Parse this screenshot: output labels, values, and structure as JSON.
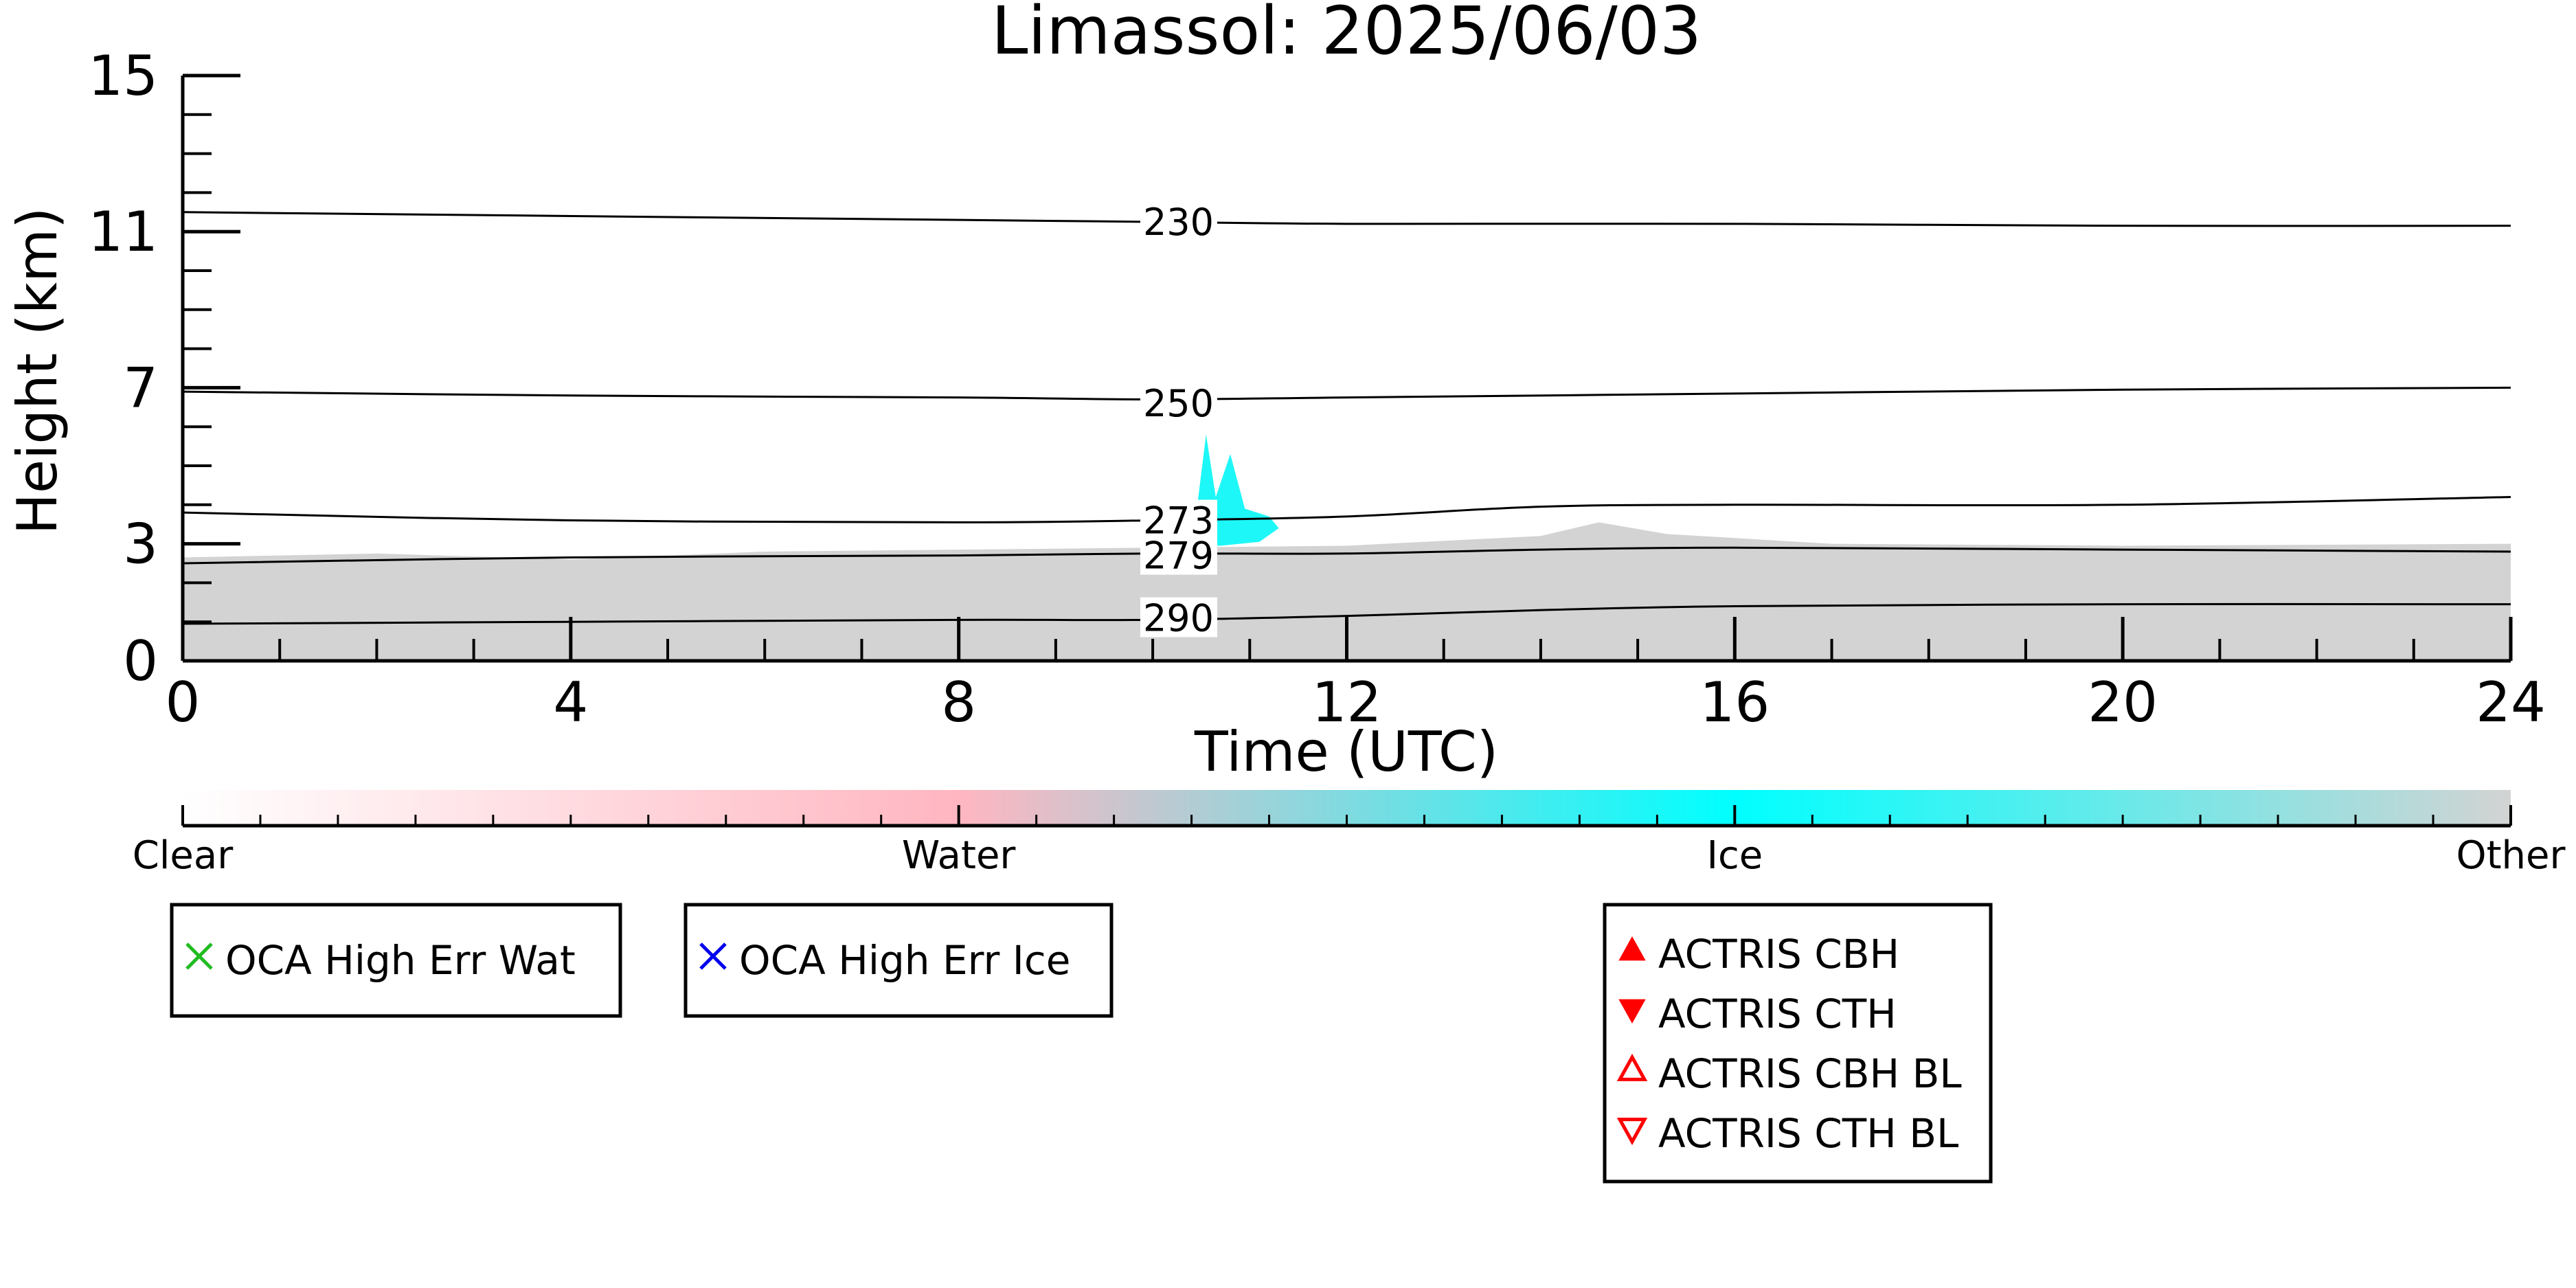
{
  "chart_data": {
    "type": "heatmap",
    "title": "Limassol: 2025/06/03",
    "xlabel": "Time (UTC)",
    "ylabel": "Height (km)",
    "xlim": [
      0,
      24
    ],
    "ylim": [
      0,
      15
    ],
    "x_ticks": [
      {
        "value": 0,
        "label": "0"
      },
      {
        "value": 4,
        "label": "4"
      },
      {
        "value": 8,
        "label": "8"
      },
      {
        "value": 12,
        "label": "12"
      },
      {
        "value": 16,
        "label": "16"
      },
      {
        "value": 20,
        "label": "20"
      },
      {
        "value": 24,
        "label": "24"
      }
    ],
    "x_minor_step": 1,
    "y_ticks": [
      {
        "value": 0,
        "label": "0"
      },
      {
        "value": 3,
        "label": "3"
      },
      {
        "value": 7,
        "label": "7"
      },
      {
        "value": 11,
        "label": "11"
      },
      {
        "value": 15,
        "label": "15"
      }
    ],
    "y_minor_step": 1,
    "temperature_contours": [
      {
        "label": "230",
        "label_at": [
          9.9,
          11.25
        ],
        "points": [
          [
            0,
            11.5
          ],
          [
            4,
            11.4
          ],
          [
            8,
            11.3
          ],
          [
            10,
            11.25
          ],
          [
            12,
            11.2
          ],
          [
            16,
            11.2
          ],
          [
            20,
            11.15
          ],
          [
            24,
            11.15
          ]
        ]
      },
      {
        "label": "250",
        "label_at": [
          9.9,
          6.6
        ],
        "points": [
          [
            0,
            6.9
          ],
          [
            4,
            6.8
          ],
          [
            8,
            6.75
          ],
          [
            10,
            6.7
          ],
          [
            12,
            6.75
          ],
          [
            16,
            6.85
          ],
          [
            20,
            6.95
          ],
          [
            24,
            7.0
          ]
        ]
      },
      {
        "label": "273",
        "label_at": [
          9.9,
          3.6
        ],
        "points": [
          [
            0,
            3.8
          ],
          [
            4,
            3.6
          ],
          [
            8,
            3.55
          ],
          [
            10,
            3.6
          ],
          [
            12,
            3.7
          ],
          [
            14,
            3.95
          ],
          [
            16,
            4.0
          ],
          [
            20,
            4.0
          ],
          [
            24,
            4.2
          ]
        ]
      },
      {
        "label": "279",
        "label_at": [
          9.9,
          2.7
        ],
        "points": [
          [
            0,
            2.5
          ],
          [
            4,
            2.65
          ],
          [
            8,
            2.7
          ],
          [
            10,
            2.75
          ],
          [
            12,
            2.75
          ],
          [
            14,
            2.85
          ],
          [
            16,
            2.9
          ],
          [
            20,
            2.85
          ],
          [
            24,
            2.8
          ]
        ]
      },
      {
        "label": "290",
        "label_at": [
          9.9,
          1.1
        ],
        "points": [
          [
            0,
            0.95
          ],
          [
            4,
            1.0
          ],
          [
            8,
            1.05
          ],
          [
            10,
            1.05
          ],
          [
            12,
            1.15
          ],
          [
            14,
            1.3
          ],
          [
            16,
            1.4
          ],
          [
            20,
            1.45
          ],
          [
            24,
            1.45
          ]
        ]
      }
    ],
    "classification_regions": [
      {
        "class": "Other",
        "color": "#d3d3d3",
        "points": [
          [
            0,
            0
          ],
          [
            0,
            2.65
          ],
          [
            2,
            2.75
          ],
          [
            4,
            2.6
          ],
          [
            6,
            2.8
          ],
          [
            8,
            2.85
          ],
          [
            10,
            2.9
          ],
          [
            12,
            2.95
          ],
          [
            14,
            3.2
          ],
          [
            14.6,
            3.55
          ],
          [
            15.3,
            3.25
          ],
          [
            17,
            3.0
          ],
          [
            20,
            2.95
          ],
          [
            24,
            3.0
          ],
          [
            24,
            0
          ]
        ]
      },
      {
        "class": "Ice",
        "color": "#1ef7f7",
        "points": [
          [
            10.1,
            3.0
          ],
          [
            10.15,
            3.9
          ],
          [
            10.45,
            3.8
          ],
          [
            10.55,
            5.8
          ],
          [
            10.65,
            4.2
          ],
          [
            10.8,
            5.3
          ],
          [
            10.95,
            3.9
          ],
          [
            11.2,
            3.7
          ],
          [
            11.3,
            3.4
          ],
          [
            11.1,
            3.05
          ],
          [
            10.7,
            2.95
          ]
        ]
      }
    ],
    "colorbar": {
      "labels": [
        "Clear",
        "Water",
        "Ice",
        "Other"
      ],
      "colors": [
        "#ffffff",
        "#ffb6c1",
        "#00ffff",
        "#d3d3d3"
      ]
    },
    "legend": [
      {
        "label": "OCA High Err Wat",
        "marker": "x",
        "color": "#22bb22"
      },
      {
        "label": "OCA High Err Ice",
        "marker": "x",
        "color": "#0000ee"
      },
      {
        "label": "ACTRIS CBH",
        "marker": "triangle-up-filled",
        "color": "#ff0000"
      },
      {
        "label": "ACTRIS CTH",
        "marker": "triangle-down-filled",
        "color": "#ff0000"
      },
      {
        "label": "ACTRIS CBH BL",
        "marker": "triangle-up-open",
        "color": "#ff0000"
      },
      {
        "label": "ACTRIS CTH BL",
        "marker": "triangle-down-open",
        "color": "#ff0000"
      }
    ]
  }
}
